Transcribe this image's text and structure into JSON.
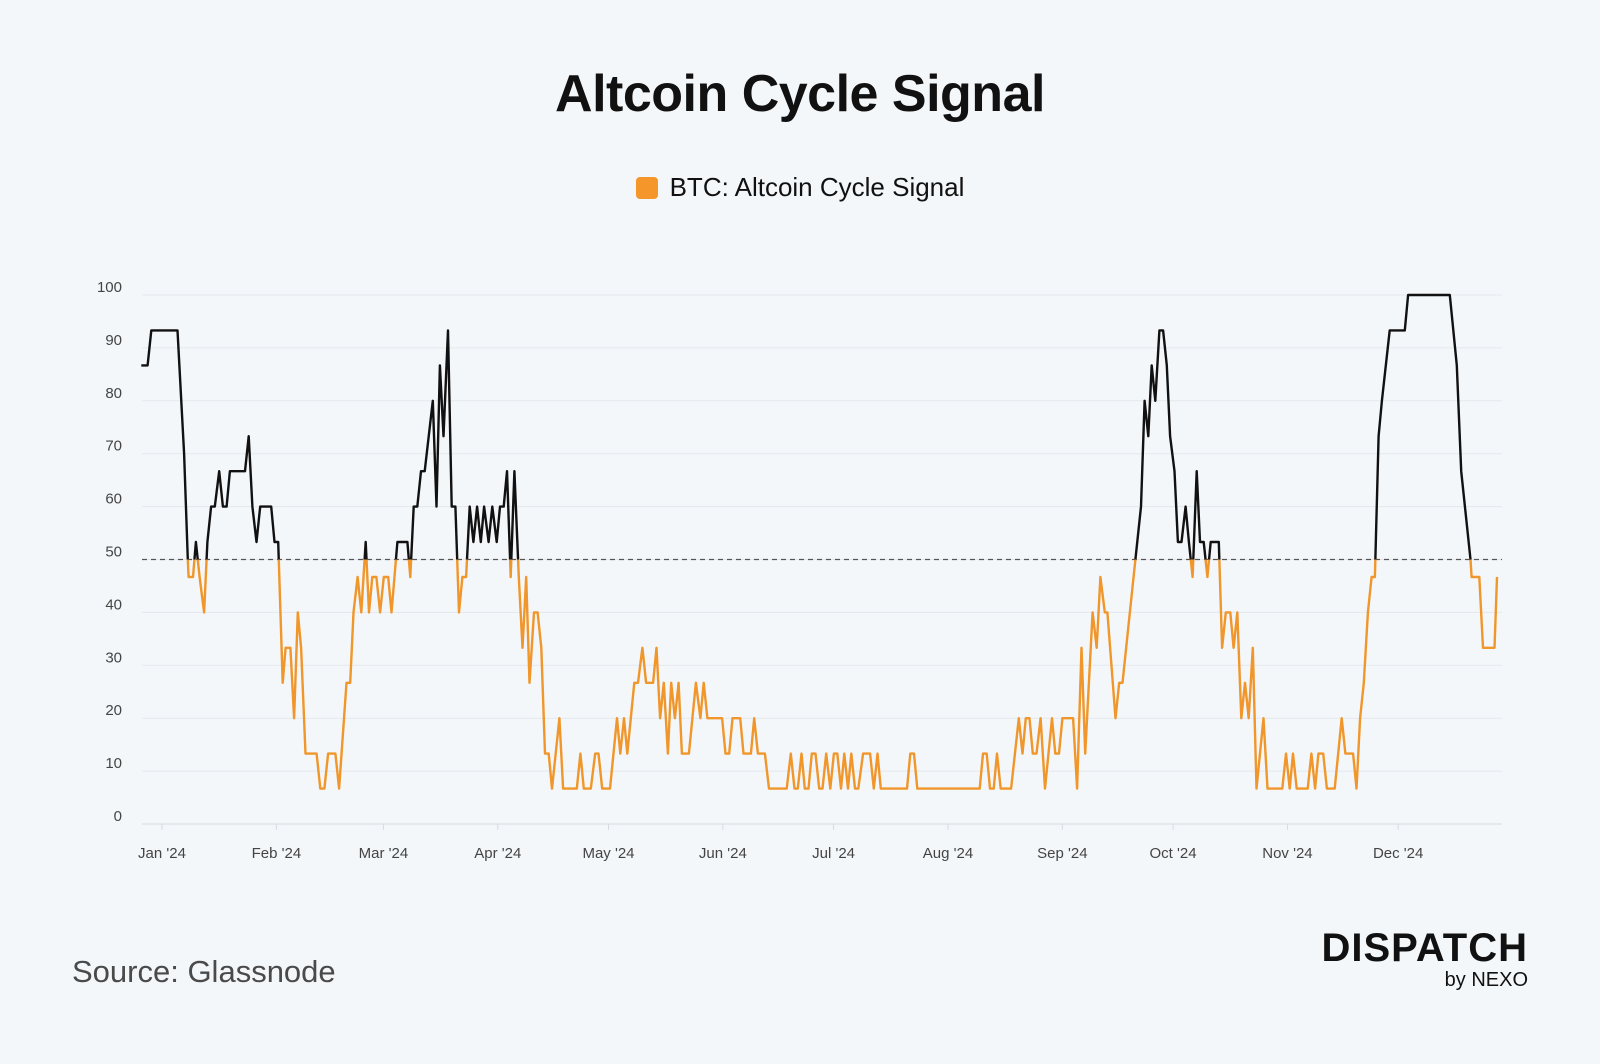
{
  "title": "Altcoin Cycle Signal",
  "legend": {
    "label": "BTC: Altcoin Cycle Signal",
    "color": "#f5962a"
  },
  "source": "Source: Glassnode",
  "logo": {
    "main": "DISPATCH",
    "sub": "by NEXO"
  },
  "chart_data": {
    "type": "line",
    "title": "Altcoin Cycle Signal",
    "xlabel": "",
    "ylabel": "",
    "x_units": "days since 2024-01-01",
    "ylim": [
      0,
      100
    ],
    "yticks": [
      0,
      10,
      20,
      30,
      40,
      50,
      60,
      70,
      80,
      90,
      100
    ],
    "xticks": [
      {
        "label": "Jan '24",
        "x": 0
      },
      {
        "label": "Feb '24",
        "x": 31
      },
      {
        "label": "Mar '24",
        "x": 60
      },
      {
        "label": "Apr '24",
        "x": 91
      },
      {
        "label": "May '24",
        "x": 121
      },
      {
        "label": "Jun '24",
        "x": 152
      },
      {
        "label": "Jul '24",
        "x": 182
      },
      {
        "label": "Aug '24",
        "x": 213
      },
      {
        "label": "Sep '24",
        "x": 244
      },
      {
        "label": "Oct '24",
        "x": 274
      },
      {
        "label": "Nov '24",
        "x": 305
      },
      {
        "label": "Dec '24",
        "x": 335
      }
    ],
    "threshold": 50,
    "colors": {
      "below": "#f0962a",
      "above": "#111111",
      "threshold": "#555555",
      "grid": "#e4e8ee"
    },
    "grid": true,
    "legend_position": "top-center",
    "series": [
      {
        "name": "BTC: Altcoin Cycle Signal",
        "points": [
          [
            -5.6,
            86.7
          ],
          [
            -3.9,
            86.7
          ],
          [
            -2.9,
            93.3
          ],
          [
            4.2,
            93.3
          ],
          [
            6,
            70
          ],
          [
            7,
            50
          ],
          [
            7.2,
            46.7
          ],
          [
            8.4,
            46.7
          ],
          [
            9.2,
            53.3
          ],
          [
            10.2,
            46.7
          ],
          [
            11.4,
            40
          ],
          [
            12.3,
            53.3
          ],
          [
            13.3,
            60
          ],
          [
            14.3,
            60
          ],
          [
            15.5,
            66.7
          ],
          [
            16.5,
            60
          ],
          [
            17.5,
            60
          ],
          [
            18.4,
            66.7
          ],
          [
            22.5,
            66.7
          ],
          [
            23.5,
            73.3
          ],
          [
            24.5,
            60
          ],
          [
            25.6,
            53.3
          ],
          [
            26.6,
            60
          ],
          [
            29.6,
            60
          ],
          [
            30.5,
            53.3
          ],
          [
            31.5,
            53.3
          ],
          [
            32.7,
            26.7
          ],
          [
            33.5,
            33.3
          ],
          [
            34.8,
            33.3
          ],
          [
            35.8,
            20
          ],
          [
            36.8,
            40
          ],
          [
            37.7,
            33.3
          ],
          [
            38.9,
            13.3
          ],
          [
            41.9,
            13.3
          ],
          [
            42.9,
            6.7
          ],
          [
            44,
            6.7
          ],
          [
            45,
            13.3
          ],
          [
            47,
            13.3
          ],
          [
            48,
            6.7
          ],
          [
            50,
            26.7
          ],
          [
            51,
            26.7
          ],
          [
            51.9,
            40
          ],
          [
            53,
            46.7
          ],
          [
            54,
            40
          ],
          [
            55.2,
            53.3
          ],
          [
            56.1,
            40
          ],
          [
            57,
            46.7
          ],
          [
            58.1,
            46.7
          ],
          [
            59.1,
            40
          ],
          [
            60.1,
            46.7
          ],
          [
            61.3,
            46.7
          ],
          [
            62.2,
            40
          ],
          [
            63.8,
            53.3
          ],
          [
            66.5,
            53.3
          ],
          [
            67.3,
            46.7
          ],
          [
            68.2,
            60
          ],
          [
            69.2,
            60
          ],
          [
            70.2,
            66.7
          ],
          [
            71.2,
            66.7
          ],
          [
            73.4,
            80
          ],
          [
            74.4,
            60
          ],
          [
            75.3,
            86.7
          ],
          [
            76.3,
            73.3
          ],
          [
            77.5,
            93.3
          ],
          [
            78.5,
            60
          ],
          [
            79.5,
            60
          ],
          [
            80.5,
            40
          ],
          [
            81.4,
            46.7
          ],
          [
            82.4,
            46.7
          ],
          [
            83.4,
            60
          ],
          [
            84.4,
            53.3
          ],
          [
            85.4,
            60
          ],
          [
            86.4,
            53.3
          ],
          [
            87.3,
            60
          ],
          [
            88.5,
            53.3
          ],
          [
            89.5,
            60
          ],
          [
            90.7,
            53.3
          ],
          [
            91.6,
            60
          ],
          [
            92.6,
            60
          ],
          [
            93.5,
            66.7
          ],
          [
            94.5,
            46.7
          ],
          [
            95.5,
            66.7
          ],
          [
            96.7,
            46.7
          ],
          [
            97.7,
            33.3
          ],
          [
            98.7,
            46.7
          ],
          [
            99.6,
            26.7
          ],
          [
            100.8,
            40
          ],
          [
            101.8,
            40
          ],
          [
            102.8,
            33.3
          ],
          [
            103.8,
            13.3
          ],
          [
            104.8,
            13.3
          ],
          [
            105.7,
            6.7
          ],
          [
            107.7,
            20
          ],
          [
            108.7,
            6.7
          ],
          [
            112.4,
            6.7
          ],
          [
            113.4,
            13.3
          ],
          [
            114.3,
            6.7
          ],
          [
            116.2,
            6.7
          ],
          [
            117.4,
            13.3
          ],
          [
            118.3,
            13.3
          ],
          [
            119.3,
            6.7
          ],
          [
            121.4,
            6.7
          ],
          [
            123.3,
            20
          ],
          [
            124.2,
            13.3
          ],
          [
            125.2,
            20
          ],
          [
            126.1,
            13.3
          ],
          [
            128,
            26.7
          ],
          [
            129,
            26.7
          ],
          [
            130.2,
            33.3
          ],
          [
            131.2,
            26.7
          ],
          [
            133.1,
            26.7
          ],
          [
            134,
            33.3
          ],
          [
            135,
            20
          ],
          [
            136,
            26.7
          ],
          [
            137.1,
            13.3
          ],
          [
            138,
            26.7
          ],
          [
            139,
            20
          ],
          [
            140,
            26.7
          ],
          [
            140.9,
            13.3
          ],
          [
            142.8,
            13.3
          ],
          [
            144.7,
            26.7
          ],
          [
            145.9,
            20
          ],
          [
            146.8,
            26.7
          ],
          [
            147.8,
            20
          ],
          [
            151.8,
            20
          ],
          [
            152.7,
            13.3
          ],
          [
            153.7,
            13.3
          ],
          [
            154.6,
            20
          ],
          [
            156.7,
            20
          ],
          [
            157.6,
            13.3
          ],
          [
            159.6,
            13.3
          ],
          [
            160.5,
            20
          ],
          [
            161.5,
            13.3
          ],
          [
            163.4,
            13.3
          ],
          [
            164.5,
            6.7
          ],
          [
            169.3,
            6.7
          ],
          [
            170.4,
            13.3
          ],
          [
            171.4,
            6.7
          ],
          [
            172.3,
            6.7
          ],
          [
            173.3,
            13.3
          ],
          [
            174.2,
            6.7
          ],
          [
            175.2,
            6.7
          ],
          [
            176.1,
            13.3
          ],
          [
            177.1,
            13.3
          ],
          [
            178.1,
            6.7
          ],
          [
            179,
            6.7
          ],
          [
            180,
            13.3
          ],
          [
            181.1,
            6.7
          ],
          [
            182.1,
            13.3
          ],
          [
            183,
            13.3
          ],
          [
            184,
            6.7
          ],
          [
            184.9,
            13.3
          ],
          [
            185.9,
            6.7
          ],
          [
            186.8,
            13.3
          ],
          [
            187.8,
            6.7
          ],
          [
            188.7,
            6.7
          ],
          [
            190,
            13.3
          ],
          [
            191.9,
            13.3
          ],
          [
            192.9,
            6.7
          ],
          [
            193.9,
            13.3
          ],
          [
            194.8,
            6.7
          ],
          [
            201.9,
            6.7
          ],
          [
            202.8,
            13.3
          ],
          [
            203.8,
            13.3
          ],
          [
            204.7,
            6.7
          ],
          [
            221.6,
            6.7
          ],
          [
            222.5,
            13.3
          ],
          [
            223.5,
            13.3
          ],
          [
            224.4,
            6.7
          ],
          [
            225.4,
            6.7
          ],
          [
            226.3,
            13.3
          ],
          [
            227.3,
            6.7
          ],
          [
            230.1,
            6.7
          ],
          [
            232.2,
            20
          ],
          [
            233.2,
            13.3
          ],
          [
            234.1,
            20
          ],
          [
            235.1,
            20
          ],
          [
            236,
            13.3
          ],
          [
            237,
            13.3
          ],
          [
            238.1,
            20
          ],
          [
            239.3,
            6.7
          ],
          [
            241.2,
            20
          ],
          [
            242.1,
            13.3
          ],
          [
            243.1,
            13.3
          ],
          [
            244,
            20
          ],
          [
            246.9,
            20
          ],
          [
            248,
            6.7
          ],
          [
            249.2,
            33.3
          ],
          [
            250.2,
            13.3
          ],
          [
            252.2,
            40
          ],
          [
            253.3,
            33.3
          ],
          [
            254.3,
            46.7
          ],
          [
            255.5,
            40
          ],
          [
            256.2,
            40
          ],
          [
            258.4,
            20
          ],
          [
            259.4,
            26.7
          ],
          [
            260.3,
            26.7
          ],
          [
            263.8,
            50
          ],
          [
            265.3,
            60
          ],
          [
            266.3,
            80
          ],
          [
            267.3,
            73.3
          ],
          [
            268.2,
            86.7
          ],
          [
            269.2,
            80
          ],
          [
            270.3,
            93.3
          ],
          [
            271.3,
            93.3
          ],
          [
            272.3,
            86.7
          ],
          [
            273.2,
            73.3
          ],
          [
            274.4,
            66.7
          ],
          [
            275.3,
            53.3
          ],
          [
            276.3,
            53.3
          ],
          [
            277.4,
            60
          ],
          [
            278.3,
            53.3
          ],
          [
            279.3,
            46.7
          ],
          [
            280.4,
            66.7
          ],
          [
            281.3,
            53.3
          ],
          [
            282.3,
            53.3
          ],
          [
            283.3,
            46.7
          ],
          [
            284.2,
            53.3
          ],
          [
            286.4,
            53.3
          ],
          [
            287.3,
            33.3
          ],
          [
            288.3,
            40
          ],
          [
            289.5,
            40
          ],
          [
            290.4,
            33.3
          ],
          [
            291.4,
            40
          ],
          [
            292.5,
            20
          ],
          [
            293.5,
            26.7
          ],
          [
            294.5,
            20
          ],
          [
            295.6,
            33.3
          ],
          [
            296.6,
            6.7
          ],
          [
            298.5,
            20
          ],
          [
            299.6,
            6.7
          ],
          [
            303.6,
            6.7
          ],
          [
            304.6,
            13.3
          ],
          [
            305.6,
            6.7
          ],
          [
            306.5,
            13.3
          ],
          [
            307.5,
            6.7
          ],
          [
            310.5,
            6.7
          ],
          [
            311.5,
            13.3
          ],
          [
            312.5,
            6.7
          ],
          [
            313.4,
            13.3
          ],
          [
            314.7,
            13.3
          ],
          [
            315.7,
            6.7
          ],
          [
            317.8,
            6.7
          ],
          [
            319.7,
            20
          ],
          [
            320.7,
            13.3
          ],
          [
            322.8,
            13.3
          ],
          [
            323.7,
            6.7
          ],
          [
            324.7,
            20
          ],
          [
            325.7,
            26.7
          ],
          [
            326.8,
            40
          ],
          [
            327.8,
            46.7
          ],
          [
            328.7,
            46.7
          ],
          [
            329.7,
            73.3
          ],
          [
            330.6,
            80
          ],
          [
            332.7,
            93.3
          ],
          [
            336.8,
            93.3
          ],
          [
            337.7,
            100
          ],
          [
            349,
            100
          ],
          [
            350.9,
            86.7
          ],
          [
            352.1,
            66.7
          ],
          [
            354.6,
            50
          ],
          [
            354.9,
            46.7
          ],
          [
            357,
            46.7
          ],
          [
            358,
            33.3
          ],
          [
            361.1,
            33.3
          ],
          [
            361.8,
            46.7
          ]
        ]
      }
    ]
  }
}
